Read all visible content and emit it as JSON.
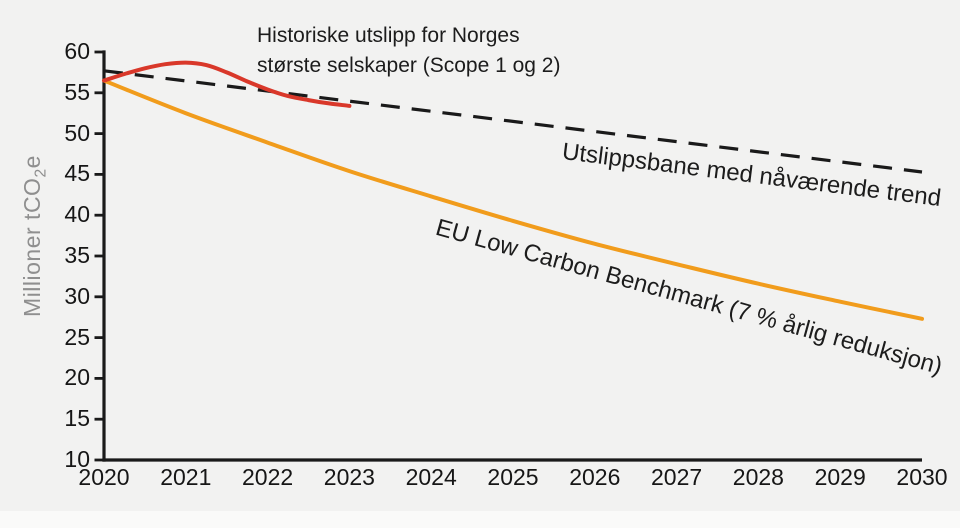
{
  "title": {
    "line1": "Historiske utslipp for Norges",
    "line2": "største selskaper (Scope 1 og 2)"
  },
  "y_axis": {
    "label_prefix": "Millioner tCO",
    "label_subscript": "2",
    "label_suffix": "e"
  },
  "annotations": {
    "trend": "Utslippsbane med nåværende trend",
    "benchmark": "EU Low Carbon Benchmark (7 % årlig reduksjon)"
  },
  "colors": {
    "background": "#f2f2f1",
    "bottom_strip": "#fafaf9",
    "axis": "#1a1a1a",
    "text": "#1c1c1c",
    "text_muted": "#8f8f8f",
    "historical_red": "#d9382a",
    "trend_black": "#1a1a1a",
    "benchmark_orange": "#f19c1c"
  },
  "chart_data": {
    "type": "line",
    "title": "Historiske utslipp for Norges største selskaper (Scope 1 og 2)",
    "xlabel": "",
    "ylabel": "Millioner tCO₂e",
    "xlim": [
      2020,
      2030
    ],
    "ylim": [
      10,
      60
    ],
    "x_ticks": [
      2020,
      2021,
      2022,
      2023,
      2024,
      2025,
      2026,
      2027,
      2028,
      2029,
      2030
    ],
    "y_ticks": [
      10,
      15,
      20,
      25,
      30,
      35,
      40,
      45,
      50,
      55,
      60
    ],
    "grid": false,
    "legend": "inline line labels",
    "series": [
      {
        "name": "Historiske utslipp for Norges største selskaper (Scope 1 og 2)",
        "slug": "historical-emissions-line",
        "color": "#d9382a",
        "style": "solid",
        "x": [
          2020,
          2020.25,
          2020.5,
          2020.75,
          2021,
          2021.25,
          2021.5,
          2021.75,
          2022,
          2022.25,
          2022.5,
          2022.75,
          2023
        ],
        "values": [
          56.5,
          57.3,
          58.0,
          58.5,
          58.7,
          58.4,
          57.5,
          56.4,
          55.4,
          54.6,
          54.1,
          53.7,
          53.4
        ]
      },
      {
        "name": "Utslippsbane med nåværende trend",
        "slug": "trend-line",
        "color": "#1a1a1a",
        "style": "dashed",
        "x": [
          2020,
          2030
        ],
        "values": [
          57.7,
          45.3
        ]
      },
      {
        "name": "EU Low Carbon Benchmark (7 % årlig reduksjon)",
        "slug": "benchmark-line",
        "color": "#f19c1c",
        "style": "solid",
        "x": [
          2020,
          2021,
          2022,
          2023,
          2024,
          2025,
          2026,
          2027,
          2028,
          2029,
          2030
        ],
        "values": [
          56.5,
          52.5,
          48.9,
          45.4,
          42.3,
          39.3,
          36.5,
          34.0,
          31.6,
          29.4,
          27.3
        ]
      }
    ]
  }
}
